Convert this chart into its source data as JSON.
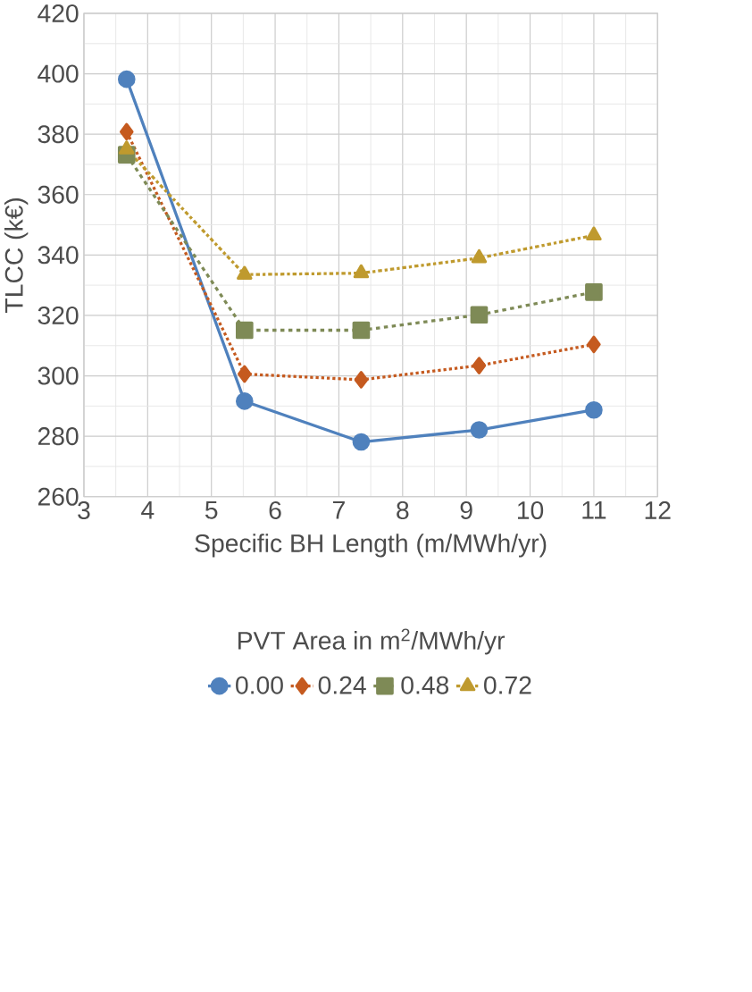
{
  "chart_data": {
    "type": "line",
    "xlabel": "Specific BH Length (m/MWh/yr)",
    "ylabel": "TLCC (k€)",
    "legend_title": "PVT Area in m$^{2}$/MWh/yr",
    "x": [
      3.67,
      5.52,
      7.35,
      9.2,
      11.0
    ],
    "series": [
      {
        "name": "0.00",
        "color": "#4f81bd",
        "marker": "circle",
        "line_style": "solid",
        "values": [
          398.2,
          291.6,
          278.1,
          282.1,
          288.7
        ]
      },
      {
        "name": "0.24",
        "color": "#c55a1f",
        "marker": "diamond",
        "line_style": "dotted",
        "values": [
          380.8,
          300.6,
          298.7,
          303.4,
          310.4
        ]
      },
      {
        "name": "0.48",
        "color": "#7e8a56",
        "marker": "square",
        "line_style": "dashed",
        "values": [
          373.2,
          315.1,
          315.1,
          320.2,
          327.7
        ]
      },
      {
        "name": "0.72",
        "color": "#bf9a2e",
        "marker": "triangle",
        "line_style": "dashdot",
        "values": [
          375.0,
          333.5,
          334.0,
          339.0,
          346.5
        ]
      }
    ],
    "xlim": [
      3,
      12
    ],
    "ylim": [
      260,
      420
    ],
    "xticks": [
      3,
      4,
      5,
      6,
      7,
      8,
      9,
      10,
      11,
      12
    ],
    "yticks": [
      260,
      280,
      300,
      320,
      340,
      360,
      380,
      400,
      420
    ],
    "grid": true,
    "legend": "bottom"
  }
}
